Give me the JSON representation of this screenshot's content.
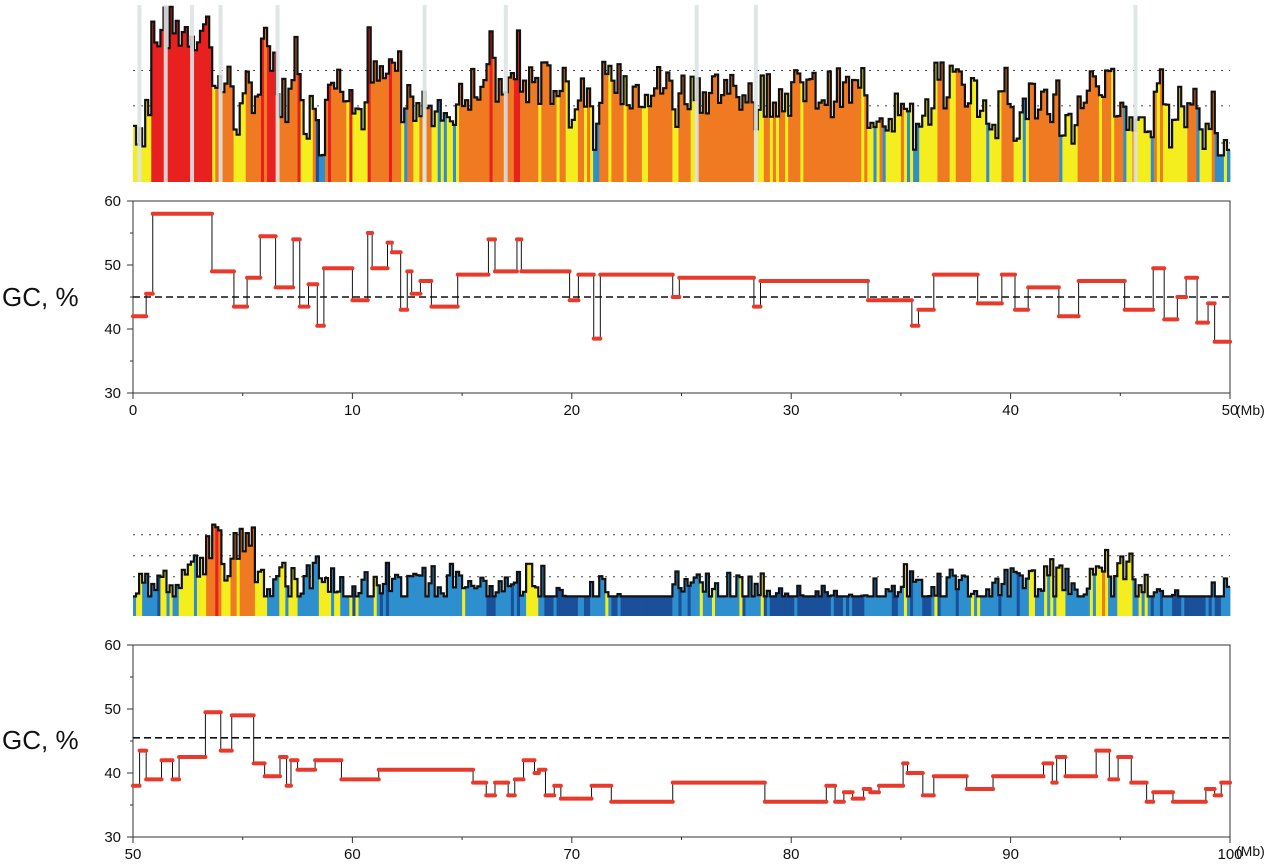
{
  "chart_data": [
    {
      "type": "line",
      "ylabel": "GC, %",
      "xlim": [
        0,
        50
      ],
      "ylim": [
        30,
        60
      ],
      "x_unit": "(Mb)",
      "x_ticks": [
        "0",
        "10",
        "20",
        "30",
        "40",
        "50"
      ],
      "y_ticks": [
        "30",
        "40",
        "50",
        "60"
      ],
      "reference_line": 45,
      "segments": [
        [
          0,
          0.6,
          42
        ],
        [
          0.6,
          0.9,
          45.5
        ],
        [
          0.9,
          3.6,
          58
        ],
        [
          3.6,
          4.6,
          49
        ],
        [
          4.6,
          5.2,
          43.5
        ],
        [
          5.2,
          5.8,
          48
        ],
        [
          5.8,
          6.5,
          54.5
        ],
        [
          6.5,
          7.3,
          46.5
        ],
        [
          7.3,
          7.6,
          54
        ],
        [
          7.6,
          8.0,
          43.5
        ],
        [
          8.0,
          8.4,
          47
        ],
        [
          8.4,
          8.7,
          40.5
        ],
        [
          8.7,
          10.0,
          49.5
        ],
        [
          10.0,
          10.7,
          44.5
        ],
        [
          10.7,
          10.9,
          55
        ],
        [
          10.9,
          11.6,
          49.5
        ],
        [
          11.6,
          11.8,
          53.5
        ],
        [
          11.8,
          12.2,
          52
        ],
        [
          12.2,
          12.5,
          43
        ],
        [
          12.5,
          12.7,
          49
        ],
        [
          12.7,
          13.1,
          45.5
        ],
        [
          13.1,
          13.6,
          47.5
        ],
        [
          13.6,
          14.8,
          43.5
        ],
        [
          14.8,
          16.2,
          48.5
        ],
        [
          16.2,
          16.5,
          54
        ],
        [
          16.5,
          17.5,
          49
        ],
        [
          17.5,
          17.7,
          54
        ],
        [
          17.7,
          19.0,
          49
        ],
        [
          19.0,
          19.9,
          49
        ],
        [
          19.9,
          20.3,
          44.5
        ],
        [
          20.3,
          21.0,
          48.5
        ],
        [
          21.0,
          21.3,
          38.5
        ],
        [
          21.3,
          24.6,
          48.5
        ],
        [
          24.6,
          24.9,
          45
        ],
        [
          24.9,
          28.3,
          48
        ],
        [
          28.3,
          28.6,
          43.5
        ],
        [
          28.6,
          33.5,
          47.5
        ],
        [
          33.5,
          35.5,
          44.5
        ],
        [
          35.5,
          35.8,
          40.5
        ],
        [
          35.8,
          36.5,
          43
        ],
        [
          36.5,
          38.5,
          48.5
        ],
        [
          38.5,
          39.6,
          44
        ],
        [
          39.6,
          40.2,
          48.5
        ],
        [
          40.2,
          40.8,
          43
        ],
        [
          40.8,
          42.2,
          46.5
        ],
        [
          42.2,
          43.1,
          42
        ],
        [
          43.1,
          45.2,
          47.5
        ],
        [
          45.2,
          46.5,
          43
        ],
        [
          46.5,
          47.0,
          49.5
        ],
        [
          47.0,
          47.6,
          41.5
        ],
        [
          47.6,
          48.0,
          45
        ],
        [
          48.0,
          48.5,
          48
        ],
        [
          48.5,
          49.0,
          41
        ],
        [
          49.0,
          49.3,
          44
        ],
        [
          49.3,
          50.0,
          38
        ]
      ]
    },
    {
      "type": "line",
      "ylabel": "GC, %",
      "xlim": [
        50,
        100
      ],
      "ylim": [
        30,
        60
      ],
      "x_unit": "(Mb)",
      "x_ticks": [
        "50",
        "60",
        "70",
        "80",
        "90",
        "100"
      ],
      "y_ticks": [
        "30",
        "40",
        "50",
        "60"
      ],
      "reference_line": 45.5,
      "segments": [
        [
          50,
          50.3,
          38
        ],
        [
          50.3,
          50.6,
          43.5
        ],
        [
          50.6,
          51.3,
          39
        ],
        [
          51.3,
          51.8,
          42
        ],
        [
          51.8,
          52.1,
          39
        ],
        [
          52.1,
          53.3,
          42.5
        ],
        [
          53.3,
          54.0,
          49.5
        ],
        [
          54.0,
          54.5,
          43.5
        ],
        [
          54.5,
          55.5,
          49
        ],
        [
          55.5,
          56.0,
          41.5
        ],
        [
          56.0,
          56.7,
          39.5
        ],
        [
          56.7,
          57.0,
          42.5
        ],
        [
          57.0,
          57.2,
          38
        ],
        [
          57.2,
          57.5,
          42
        ],
        [
          57.5,
          58.3,
          40.5
        ],
        [
          58.3,
          59.5,
          42
        ],
        [
          59.5,
          61.2,
          39
        ],
        [
          61.2,
          65.5,
          40.5
        ],
        [
          65.5,
          66.1,
          38.5
        ],
        [
          66.1,
          66.5,
          36.5
        ],
        [
          66.5,
          67.1,
          38.5
        ],
        [
          67.1,
          67.4,
          36.5
        ],
        [
          67.4,
          67.8,
          39
        ],
        [
          67.8,
          68.3,
          42
        ],
        [
          68.3,
          68.5,
          40
        ],
        [
          68.5,
          68.8,
          40.5
        ],
        [
          68.8,
          69.2,
          36.5
        ],
        [
          69.2,
          69.5,
          38
        ],
        [
          69.5,
          70.9,
          36
        ],
        [
          70.9,
          71.8,
          38
        ],
        [
          71.8,
          74.6,
          35.5
        ],
        [
          74.6,
          78.8,
          38.5
        ],
        [
          78.8,
          81.6,
          35.5
        ],
        [
          81.6,
          82.0,
          38
        ],
        [
          82.0,
          82.4,
          35.5
        ],
        [
          82.4,
          82.8,
          37
        ],
        [
          82.8,
          83.3,
          36
        ],
        [
          83.3,
          83.6,
          37.5
        ],
        [
          83.6,
          84.0,
          37
        ],
        [
          84.0,
          85.1,
          38
        ],
        [
          85.1,
          85.3,
          41.5
        ],
        [
          85.3,
          86.0,
          40
        ],
        [
          86.0,
          86.5,
          36.5
        ],
        [
          86.5,
          88.0,
          39.5
        ],
        [
          88.0,
          89.2,
          37.5
        ],
        [
          89.2,
          91.5,
          39.5
        ],
        [
          91.5,
          91.9,
          41.5
        ],
        [
          91.9,
          92.1,
          38.5
        ],
        [
          92.1,
          92.5,
          42.5
        ],
        [
          92.5,
          93.9,
          39.5
        ],
        [
          93.9,
          94.5,
          43.5
        ],
        [
          94.5,
          94.9,
          39
        ],
        [
          94.9,
          95.5,
          42.5
        ],
        [
          95.5,
          96.2,
          38.5
        ],
        [
          96.2,
          96.5,
          35.5
        ],
        [
          96.5,
          97.4,
          37
        ],
        [
          97.4,
          98.9,
          35.5
        ],
        [
          98.9,
          99.3,
          37.5
        ],
        [
          99.3,
          99.6,
          36.5
        ],
        [
          99.6,
          100.0,
          38.5
        ]
      ]
    }
  ],
  "bands": [
    {
      "xlim": [
        0,
        50
      ],
      "levels": [
        0.22,
        0.43,
        0.63
      ]
    },
    {
      "xlim": [
        50,
        100
      ],
      "levels": [
        0.3,
        0.46,
        0.62
      ]
    }
  ],
  "colors": {
    "line": "#e8392b",
    "connector": "#111111",
    "isochore_L1": "#1a4f9a",
    "isochore_L2": "#2e8fcf",
    "isochore_H1": "#f4ee1e",
    "isochore_H2": "#ef7a22",
    "isochore_H3": "#e8201f",
    "gap": "#dde3e2"
  }
}
